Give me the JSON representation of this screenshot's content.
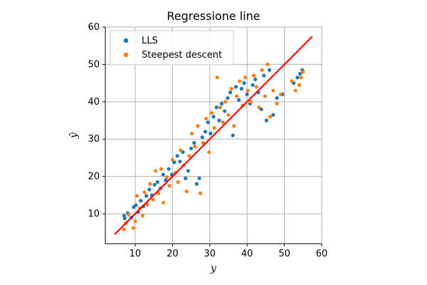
{
  "chart_data": {
    "type": "scatter",
    "title": "Regressione line",
    "xlabel": "y",
    "ylabel": "ŷ",
    "xlim": [
      2,
      60
    ],
    "ylim": [
      2,
      60
    ],
    "xticks": [
      10,
      20,
      30,
      40,
      50,
      60
    ],
    "yticks": [
      10,
      20,
      30,
      40,
      50,
      60
    ],
    "grid": true,
    "legend": "top-left",
    "colors": {
      "LLS": "#1f77b4",
      "Steepest descent": "#ff7f0e",
      "fit_line": "#ff0000"
    },
    "series": [
      {
        "name": "LLS",
        "type": "scatter",
        "points": [
          [
            7.0,
            9.5
          ],
          [
            7.2,
            8.8
          ],
          [
            8.0,
            10.2
          ],
          [
            9.0,
            9.0
          ],
          [
            9.6,
            11.8
          ],
          [
            10.2,
            12.3
          ],
          [
            10.8,
            10.5
          ],
          [
            11.5,
            13.5
          ],
          [
            12.2,
            12.0
          ],
          [
            13.0,
            14.8
          ],
          [
            13.8,
            16.5
          ],
          [
            14.5,
            15.0
          ],
          [
            15.2,
            17.8
          ],
          [
            16.0,
            18.5
          ],
          [
            16.8,
            16.8
          ],
          [
            17.5,
            20.5
          ],
          [
            18.2,
            19.0
          ],
          [
            19.0,
            22.0
          ],
          [
            19.8,
            20.5
          ],
          [
            20.5,
            23.8
          ],
          [
            21.3,
            25.5
          ],
          [
            22.0,
            24.0
          ],
          [
            22.8,
            26.5
          ],
          [
            23.5,
            19.5
          ],
          [
            24.2,
            21.5
          ],
          [
            25.0,
            27.5
          ],
          [
            25.8,
            29.0
          ],
          [
            26.5,
            18.0
          ],
          [
            27.2,
            19.5
          ],
          [
            28.0,
            30.5
          ],
          [
            28.8,
            32.0
          ],
          [
            29.5,
            34.5
          ],
          [
            30.2,
            31.5
          ],
          [
            31.0,
            36.0
          ],
          [
            31.8,
            38.5
          ],
          [
            32.5,
            35.0
          ],
          [
            33.2,
            39.5
          ],
          [
            34.0,
            37.5
          ],
          [
            34.8,
            41.0
          ],
          [
            35.5,
            42.5
          ],
          [
            36.2,
            31.0
          ],
          [
            37.0,
            44.0
          ],
          [
            37.8,
            40.5
          ],
          [
            38.5,
            43.5
          ],
          [
            39.2,
            45.0
          ],
          [
            40.0,
            42.0
          ],
          [
            40.8,
            39.5
          ],
          [
            41.5,
            44.5
          ],
          [
            42.2,
            46.0
          ],
          [
            43.0,
            42.5
          ],
          [
            43.8,
            38.0
          ],
          [
            44.5,
            47.0
          ],
          [
            45.2,
            35.0
          ],
          [
            46.0,
            48.5
          ],
          [
            47.0,
            36.5
          ],
          [
            48.0,
            41.0
          ],
          [
            49.5,
            42.0
          ],
          [
            52.5,
            45.0
          ],
          [
            53.5,
            46.5
          ],
          [
            54.2,
            47.5
          ],
          [
            54.8,
            48.5
          ]
        ]
      },
      {
        "name": "Steepest descent",
        "type": "scatter",
        "points": [
          [
            7.0,
            5.8
          ],
          [
            7.5,
            7.5
          ],
          [
            8.2,
            9.8
          ],
          [
            9.5,
            6.2
          ],
          [
            10.0,
            8.0
          ],
          [
            10.5,
            14.8
          ],
          [
            11.2,
            11.5
          ],
          [
            12.0,
            9.5
          ],
          [
            12.5,
            15.8
          ],
          [
            13.2,
            12.5
          ],
          [
            14.0,
            18.0
          ],
          [
            14.8,
            13.8
          ],
          [
            15.5,
            21.5
          ],
          [
            16.2,
            15.5
          ],
          [
            17.0,
            22.0
          ],
          [
            17.6,
            13.0
          ],
          [
            18.5,
            19.8
          ],
          [
            19.2,
            17.5
          ],
          [
            20.0,
            24.5
          ],
          [
            20.8,
            21.0
          ],
          [
            21.5,
            18.5
          ],
          [
            22.2,
            27.0
          ],
          [
            23.0,
            23.0
          ],
          [
            23.8,
            16.0
          ],
          [
            24.5,
            25.5
          ],
          [
            25.2,
            31.5
          ],
          [
            26.0,
            28.0
          ],
          [
            26.8,
            33.5
          ],
          [
            27.5,
            15.5
          ],
          [
            28.2,
            29.0
          ],
          [
            29.0,
            35.5
          ],
          [
            29.8,
            26.5
          ],
          [
            30.5,
            37.0
          ],
          [
            31.2,
            33.0
          ],
          [
            32.0,
            46.5
          ],
          [
            32.8,
            38.5
          ],
          [
            33.5,
            34.5
          ],
          [
            34.2,
            40.0
          ],
          [
            35.0,
            36.5
          ],
          [
            35.8,
            43.5
          ],
          [
            36.5,
            33.5
          ],
          [
            37.2,
            41.5
          ],
          [
            38.0,
            45.5
          ],
          [
            38.8,
            39.0
          ],
          [
            39.5,
            46.5
          ],
          [
            40.2,
            43.0
          ],
          [
            41.0,
            40.0
          ],
          [
            41.8,
            47.0
          ],
          [
            42.5,
            44.0
          ],
          [
            43.2,
            38.5
          ],
          [
            44.0,
            48.5
          ],
          [
            44.8,
            41.5
          ],
          [
            45.5,
            50.0
          ],
          [
            46.2,
            36.0
          ],
          [
            47.0,
            43.0
          ],
          [
            48.0,
            39.5
          ],
          [
            49.0,
            42.0
          ],
          [
            52.0,
            45.5
          ],
          [
            53.0,
            43.0
          ],
          [
            54.0,
            44.5
          ],
          [
            54.5,
            46.5
          ],
          [
            55.0,
            48.0
          ]
        ]
      },
      {
        "name": "",
        "type": "line",
        "points": [
          [
            4.5,
            4.5
          ],
          [
            57.5,
            57.5
          ]
        ]
      }
    ]
  }
}
